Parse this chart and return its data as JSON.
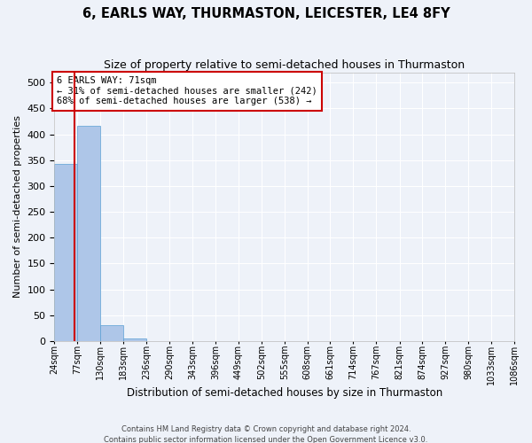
{
  "title": "6, EARLS WAY, THURMASTON, LEICESTER, LE4 8FY",
  "subtitle": "Size of property relative to semi-detached houses in Thurmaston",
  "xlabel": "Distribution of semi-detached houses by size in Thurmaston",
  "ylabel": "Number of semi-detached properties",
  "footer_line1": "Contains HM Land Registry data © Crown copyright and database right 2024.",
  "footer_line2": "Contains public sector information licensed under the Open Government Licence v3.0.",
  "annotation_title": "6 EARLS WAY: 71sqm",
  "annotation_line1": "← 31% of semi-detached houses are smaller (242)",
  "annotation_line2": "68% of semi-detached houses are larger (538) →",
  "property_size": 71,
  "bin_edges": [
    24,
    77,
    130,
    183,
    236,
    290,
    343,
    396,
    449,
    502,
    555,
    608,
    661,
    714,
    767,
    821,
    874,
    927,
    980,
    1033,
    1086
  ],
  "bin_labels": [
    "24sqm",
    "77sqm",
    "130sqm",
    "183sqm",
    "236sqm",
    "290sqm",
    "343sqm",
    "396sqm",
    "449sqm",
    "502sqm",
    "555sqm",
    "608sqm",
    "661sqm",
    "714sqm",
    "767sqm",
    "821sqm",
    "874sqm",
    "927sqm",
    "980sqm",
    "1033sqm",
    "1086sqm"
  ],
  "bar_heights": [
    343,
    416,
    30,
    5,
    0,
    0,
    0,
    0,
    0,
    0,
    0,
    0,
    0,
    0,
    0,
    0,
    0,
    0,
    0,
    0,
    2
  ],
  "bar_color": "#aec6e8",
  "bar_edge_color": "#5a9fd4",
  "vline_color": "#cc0000",
  "annotation_box_edge": "#cc0000",
  "ylim": [
    0,
    520
  ],
  "yticks": [
    0,
    50,
    100,
    150,
    200,
    250,
    300,
    350,
    400,
    450,
    500
  ],
  "background_color": "#eef2f9",
  "grid_color": "#ffffff",
  "title_fontsize": 10.5,
  "subtitle_fontsize": 9,
  "axis_label_fontsize": 8,
  "tick_fontsize": 7,
  "annotation_fontsize": 7.5
}
